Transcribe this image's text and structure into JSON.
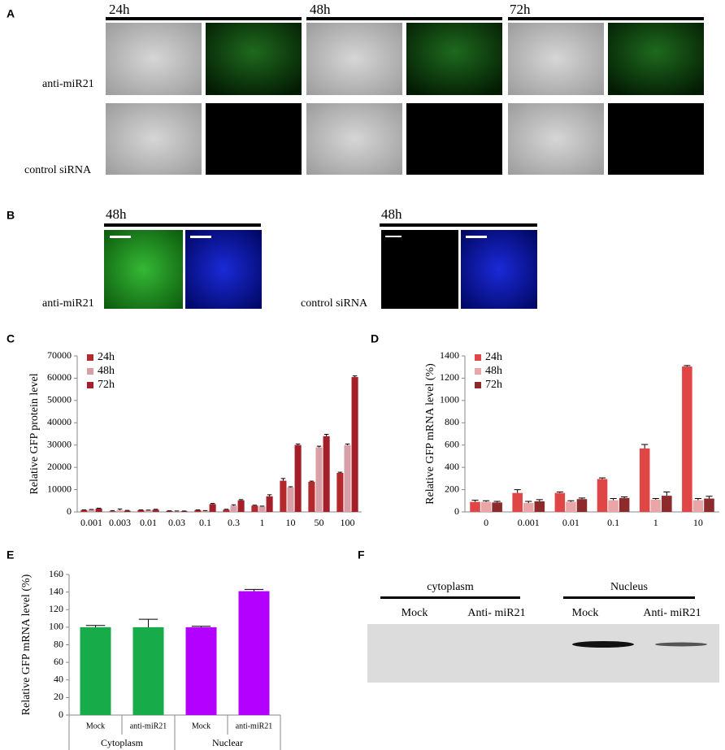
{
  "panels": {
    "A": {
      "label": "A",
      "times": [
        "24h",
        "48h",
        "72h"
      ],
      "rows": [
        "anti-miR21",
        "control siRNA"
      ]
    },
    "B": {
      "label": "B",
      "time_left": "48h",
      "time_right": "48h",
      "row_left": "anti-miR21",
      "row_right": "control siRNA"
    },
    "F": {
      "label": "F",
      "groups": [
        "cytoplasm",
        "Nucleus"
      ],
      "lanes": [
        "Mock",
        "Anti- miR21",
        "Mock",
        "Anti- miR21"
      ]
    }
  },
  "chart_data": [
    {
      "type": "bar",
      "panel_label": "C",
      "ylabel": "Relative GFP protein level",
      "categories": [
        "0.001",
        "0.003",
        "0.01",
        "0.03",
        "0.1",
        "0.3",
        "1",
        "10",
        "50",
        "100"
      ],
      "series": [
        {
          "name": "24h",
          "color": "#b3292c",
          "values": [
            800,
            300,
            800,
            400,
            800,
            1000,
            2800,
            14000,
            13500,
            17500
          ],
          "errors": [
            100,
            300,
            100,
            100,
            100,
            200,
            200,
            1000,
            300,
            300
          ]
        },
        {
          "name": "48h",
          "color": "#d8a0a6",
          "values": [
            1000,
            800,
            700,
            300,
            500,
            2800,
            2400,
            11000,
            29000,
            30000
          ],
          "errors": [
            100,
            500,
            100,
            100,
            100,
            400,
            200,
            300,
            500,
            500
          ]
        },
        {
          "name": "72h",
          "color": "#a3202a",
          "values": [
            1500,
            500,
            1000,
            300,
            3500,
            5200,
            7000,
            30000,
            34000,
            60500
          ],
          "errors": [
            200,
            200,
            200,
            100,
            300,
            300,
            700,
            500,
            800,
            500
          ]
        }
      ],
      "ylim": [
        0,
        70000
      ],
      "yticks": [
        0,
        10000,
        20000,
        30000,
        40000,
        50000,
        60000,
        70000
      ],
      "legend": "upper left"
    },
    {
      "type": "bar",
      "panel_label": "D",
      "ylabel": "Relative GFP mRNA level (%)",
      "categories": [
        "0",
        "0.001",
        "0.01",
        "0.1",
        "1",
        "10"
      ],
      "series": [
        {
          "name": "24h",
          "color": "#e04646",
          "values": [
            90,
            170,
            170,
            295,
            570,
            1305
          ],
          "errors": [
            15,
            30,
            10,
            10,
            35,
            8
          ]
        },
        {
          "name": "48h",
          "color": "#eaa6a6",
          "values": [
            90,
            80,
            90,
            105,
            110,
            105
          ],
          "errors": [
            10,
            15,
            10,
            15,
            10,
            15
          ]
        },
        {
          "name": "72h",
          "color": "#8c2a2c",
          "values": [
            85,
            95,
            115,
            125,
            145,
            120
          ],
          "errors": [
            10,
            15,
            10,
            10,
            35,
            20
          ]
        }
      ],
      "ylim": [
        0,
        1400
      ],
      "yticks": [
        0,
        200,
        400,
        600,
        800,
        1000,
        1200,
        1400
      ],
      "legend": "upper left"
    },
    {
      "type": "bar",
      "panel_label": "E",
      "ylabel": "Relative GFP mRNA level (%)",
      "categories": [
        "Mock",
        "anti-miR21",
        "Mock",
        "anti-miR21"
      ],
      "group_labels": [
        "Cytoplasm",
        "Nuclear"
      ],
      "series": [
        {
          "colors": [
            "#17ab4a",
            "#17ab4a",
            "#b300ff",
            "#b300ff"
          ],
          "values": [
            100,
            100,
            100,
            141
          ],
          "errors": [
            2,
            9,
            1,
            2
          ]
        }
      ],
      "ylim": [
        0,
        160
      ],
      "yticks": [
        0,
        20,
        40,
        60,
        80,
        100,
        120,
        140,
        160
      ]
    }
  ]
}
